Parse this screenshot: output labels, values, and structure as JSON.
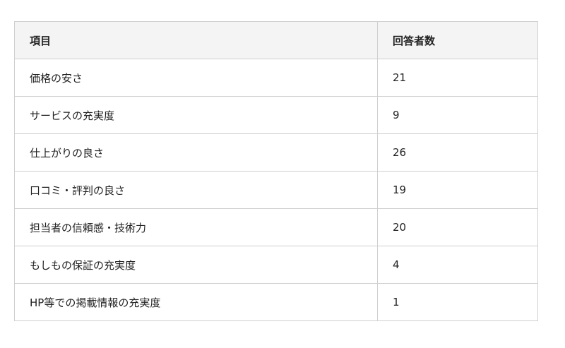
{
  "table": {
    "headers": [
      "項目",
      "回答者数"
    ],
    "rows": [
      [
        "価格の安さ",
        "21"
      ],
      [
        "サービスの充実度",
        "9"
      ],
      [
        "仕上がりの良さ",
        "26"
      ],
      [
        "口コミ・評判の良さ",
        "19"
      ],
      [
        "担当者の信頼感・技術力",
        "20"
      ],
      [
        "もしもの保証の充実度",
        "4"
      ],
      [
        "HP等での掲載情報の充実度",
        "1"
      ]
    ]
  }
}
